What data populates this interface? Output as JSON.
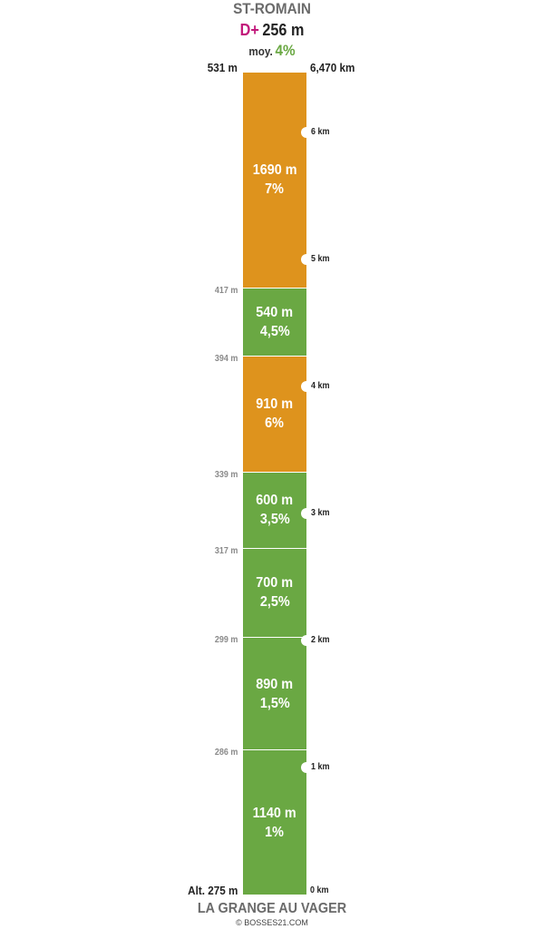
{
  "header": {
    "title": "ST-ROMAIN",
    "dplus_prefix": "D+",
    "dplus_value": "256 m",
    "moy_label": "moy.",
    "moy_value": "4%"
  },
  "summit": {
    "altitude": "531 m",
    "distance": "6,470 km"
  },
  "base": {
    "altitude": "Alt. 275 m",
    "distance": "0 km"
  },
  "colors": {
    "orange": "#de931d",
    "green": "#6aa843",
    "dplus": "#c2187b"
  },
  "chart_data": {
    "type": "bar",
    "title": "ST-ROMAIN",
    "segments": [
      {
        "length": "1140 m",
        "grade": "1%",
        "start_alt_m": 275,
        "end_alt_m": 286,
        "color": "green"
      },
      {
        "length": "890 m",
        "grade": "1,5%",
        "start_alt_m": 286,
        "end_alt_m": 299,
        "color": "green"
      },
      {
        "length": "700 m",
        "grade": "2,5%",
        "start_alt_m": 299,
        "end_alt_m": 317,
        "color": "green"
      },
      {
        "length": "600 m",
        "grade": "3,5%",
        "start_alt_m": 317,
        "end_alt_m": 339,
        "color": "green"
      },
      {
        "length": "910 m",
        "grade": "6%",
        "start_alt_m": 339,
        "end_alt_m": 394,
        "color": "orange"
      },
      {
        "length": "540 m",
        "grade": "4,5%",
        "start_alt_m": 394,
        "end_alt_m": 417,
        "color": "green"
      },
      {
        "length": "1690 m",
        "grade": "7%",
        "start_alt_m": 417,
        "end_alt_m": 531,
        "color": "orange"
      }
    ],
    "altitude_labels": [
      "286 m",
      "299 m",
      "317 m",
      "339 m",
      "394 m",
      "417 m"
    ],
    "km_markers": [
      {
        "km": 1,
        "label": "1 km"
      },
      {
        "km": 2,
        "label": "2 km"
      },
      {
        "km": 3,
        "label": "3 km"
      },
      {
        "km": 4,
        "label": "4 km"
      },
      {
        "km": 5,
        "label": "5 km"
      },
      {
        "km": 6,
        "label": "6 km"
      }
    ],
    "total_distance_km": 6.47
  },
  "footer": {
    "title": "LA GRANGE AU VAGER",
    "copyright": "© BOSSES21.COM"
  }
}
